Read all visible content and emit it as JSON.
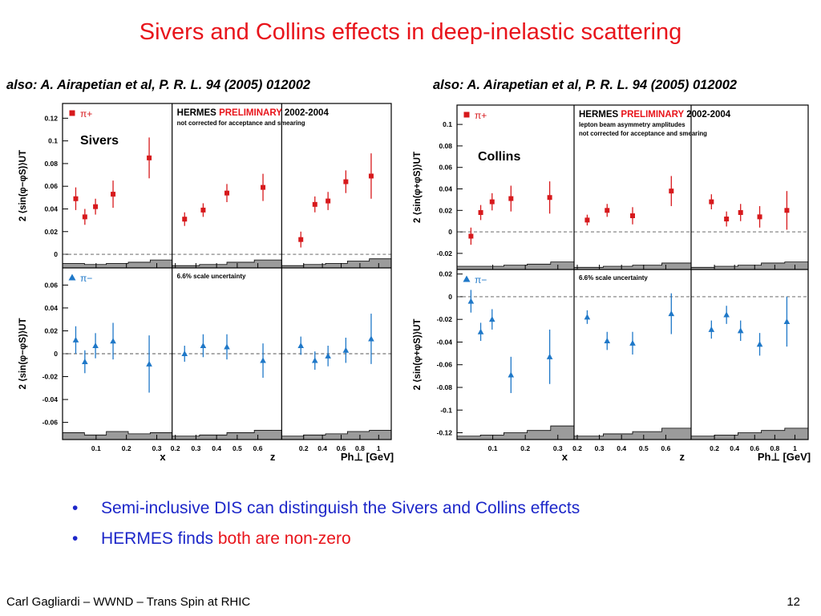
{
  "slide": {
    "title": "Sivers and Collins effects in deep-inelastic scattering",
    "bullets": [
      {
        "symbol": "•",
        "parts": [
          {
            "text": "Semi-inclusive DIS can distinguish the Sivers and Collins effects",
            "color": "#1d27c9"
          }
        ]
      },
      {
        "symbol": "•",
        "parts": [
          {
            "text": "HERMES finds ",
            "color": "#1d27c9"
          },
          {
            "text": "both are non-zero",
            "color": "#e8141b"
          }
        ]
      }
    ],
    "footer_left": "Carl Gagliardi – WWND – Trans Spin at RHIC",
    "page_number": "12"
  },
  "chart_data": [
    {
      "type": "scatter",
      "name": "sivers",
      "reference": "also: A. Airapetian et al, P. R. L. 94 (2005) 012002",
      "experiment": "HERMES",
      "preliminary_label": "PRELIMINARY",
      "years": "2002-2004",
      "note_lines": [
        "not corrected for acceptance and smearing"
      ],
      "overlay_label": "Sivers",
      "scale_uncertainty": "6.6% scale uncertainty",
      "ylabel": "2 ⟨sin(φ−φS)⟩UT",
      "xlabels": [
        "x",
        "z",
        "Ph⊥ [GeV]"
      ],
      "xlims": [
        [
          0.0,
          0.34
        ],
        [
          0.2,
          0.7
        ],
        [
          0.0,
          1.1
        ]
      ],
      "xticks": [
        [
          0.1,
          0.2,
          0.3
        ],
        [
          0.2,
          0.3,
          0.4,
          0.5,
          0.6
        ],
        [
          0.2,
          0.4,
          0.6,
          0.8,
          1
        ]
      ],
      "rows": [
        {
          "series": "π+",
          "marker": "square",
          "color": "#d7191c",
          "ylim": [
            -0.012,
            0.133
          ],
          "yticks": [
            0,
            0.02,
            0.04,
            0.06,
            0.08,
            0.1,
            0.12
          ],
          "ytick_labels": [
            "0",
            "0.02",
            "0.04",
            "0.06",
            "0.08",
            "0.1",
            "0.12"
          ],
          "panels": [
            {
              "x": [
                0.033,
                0.063,
                0.098,
                0.156,
                0.275
              ],
              "y": [
                0.049,
                0.033,
                0.042,
                0.053,
                0.085
              ],
              "err": [
                0.01,
                0.007,
                0.007,
                0.012,
                0.018
              ]
            },
            {
              "x": [
                0.245,
                0.335,
                0.45,
                0.625
              ],
              "y": [
                0.031,
                0.039,
                0.054,
                0.059
              ],
              "err": [
                0.006,
                0.006,
                0.008,
                0.012
              ]
            },
            {
              "x": [
                0.17,
                0.32,
                0.46,
                0.65,
                0.92
              ],
              "y": [
                0.013,
                0.044,
                0.047,
                0.064,
                0.069
              ],
              "err": [
                0.007,
                0.007,
                0.008,
                0.01,
                0.02
              ]
            }
          ],
          "syst_bands": [
            [
              0.004,
              0.003,
              0.004,
              0.005,
              0.007
            ],
            [
              0.002,
              0.003,
              0.005,
              0.007
            ],
            [
              0.002,
              0.003,
              0.004,
              0.006,
              0.008
            ]
          ]
        },
        {
          "series": "π−",
          "marker": "triangle",
          "color": "#1f78c8",
          "ylim": [
            -0.075,
            0.075
          ],
          "yticks": [
            -0.06,
            -0.04,
            -0.02,
            0,
            0.02,
            0.04,
            0.06
          ],
          "ytick_labels": [
            "-0.06",
            "-0.04",
            "-0.02",
            "0",
            "0.02",
            "0.04",
            "0.06"
          ],
          "panels": [
            {
              "x": [
                0.033,
                0.063,
                0.098,
                0.156,
                0.275
              ],
              "y": [
                0.012,
                -0.007,
                0.007,
                0.011,
                -0.009
              ],
              "err": [
                0.012,
                0.01,
                0.011,
                0.016,
                0.025
              ]
            },
            {
              "x": [
                0.245,
                0.335,
                0.45,
                0.625
              ],
              "y": [
                0.0,
                0.007,
                0.006,
                -0.006
              ],
              "err": [
                0.007,
                0.01,
                0.011,
                0.015
              ]
            },
            {
              "x": [
                0.17,
                0.32,
                0.46,
                0.65,
                0.92
              ],
              "y": [
                0.007,
                -0.006,
                -0.002,
                0.003,
                0.013
              ],
              "err": [
                0.008,
                0.008,
                0.009,
                0.011,
                0.022
              ]
            }
          ],
          "syst_bands": [
            [
              0.006,
              0.004,
              0.007,
              0.005,
              0.006
            ],
            [
              0.003,
              0.004,
              0.006,
              0.008
            ],
            [
              0.003,
              0.004,
              0.005,
              0.007,
              0.008
            ]
          ]
        }
      ]
    },
    {
      "type": "scatter",
      "name": "collins",
      "reference": "also: A. Airapetian et al, P. R. L. 94 (2005) 012002",
      "experiment": "HERMES",
      "preliminary_label": "PRELIMINARY",
      "years": "2002-2004",
      "note_lines": [
        "lepton beam asymmetry amplitudes",
        "not corrected for acceptance and smearing"
      ],
      "overlay_label": "Collins",
      "scale_uncertainty": "6.6% scale uncertainty",
      "ylabel": "2 ⟨sin(φ+φS)⟩UT",
      "xlabels": [
        "x",
        "z",
        "Ph⊥ [GeV]"
      ],
      "xlims": [
        [
          0.0,
          0.34
        ],
        [
          0.2,
          0.7
        ],
        [
          0.0,
          1.1
        ]
      ],
      "xticks": [
        [
          0.1,
          0.2,
          0.3
        ],
        [
          0.2,
          0.3,
          0.4,
          0.5,
          0.6
        ],
        [
          0.2,
          0.4,
          0.6,
          0.8,
          1
        ]
      ],
      "rows": [
        {
          "series": "π+",
          "marker": "square",
          "color": "#d7191c",
          "ylim": [
            -0.035,
            0.118
          ],
          "yticks": [
            -0.02,
            0,
            0.02,
            0.04,
            0.06,
            0.08,
            0.1
          ],
          "ytick_labels": [
            "-0.02",
            "0",
            "0.02",
            "0.04",
            "0.06",
            "0.08",
            "0.1"
          ],
          "panels": [
            {
              "x": [
                0.033,
                0.063,
                0.098,
                0.156,
                0.275
              ],
              "y": [
                -0.004,
                0.018,
                0.028,
                0.031,
                0.032
              ],
              "err": [
                0.008,
                0.007,
                0.008,
                0.012,
                0.015
              ]
            },
            {
              "x": [
                0.245,
                0.335,
                0.45,
                0.625
              ],
              "y": [
                0.011,
                0.02,
                0.015,
                0.038
              ],
              "err": [
                0.005,
                0.006,
                0.008,
                0.014
              ]
            },
            {
              "x": [
                0.17,
                0.32,
                0.46,
                0.65,
                0.92
              ],
              "y": [
                0.028,
                0.012,
                0.018,
                0.014,
                0.02
              ],
              "err": [
                0.007,
                0.007,
                0.008,
                0.01,
                0.018
              ]
            }
          ],
          "syst_bands": [
            [
              0.003,
              0.003,
              0.004,
              0.005,
              0.007
            ],
            [
              0.002,
              0.003,
              0.004,
              0.006
            ],
            [
              0.002,
              0.003,
              0.004,
              0.006,
              0.007
            ]
          ]
        },
        {
          "series": "π−",
          "marker": "triangle",
          "color": "#1f78c8",
          "ylim": [
            -0.126,
            0.024
          ],
          "yticks": [
            -0.12,
            -0.1,
            -0.08,
            -0.06,
            -0.04,
            -0.02,
            0,
            0.02
          ],
          "ytick_labels": [
            "-0.12",
            "-0.1",
            "-0.08",
            "-0.06",
            "-0.04",
            "-0.02",
            "0",
            "0.02"
          ],
          "panels": [
            {
              "x": [
                0.033,
                0.063,
                0.098,
                0.156,
                0.275
              ],
              "y": [
                -0.004,
                -0.031,
                -0.02,
                -0.069,
                -0.053
              ],
              "err": [
                0.01,
                0.008,
                0.009,
                0.016,
                0.024
              ]
            },
            {
              "x": [
                0.245,
                0.335,
                0.45,
                0.625
              ],
              "y": [
                -0.018,
                -0.039,
                -0.041,
                -0.015
              ],
              "err": [
                0.006,
                0.008,
                0.01,
                0.018
              ]
            },
            {
              "x": [
                0.17,
                0.32,
                0.46,
                0.65,
                0.92
              ],
              "y": [
                -0.029,
                -0.016,
                -0.03,
                -0.042,
                -0.022
              ],
              "err": [
                0.008,
                0.008,
                0.009,
                0.01,
                0.022
              ]
            }
          ],
          "syst_bands": [
            [
              0.003,
              0.004,
              0.006,
              0.008,
              0.012
            ],
            [
              0.003,
              0.005,
              0.007,
              0.01
            ],
            [
              0.003,
              0.004,
              0.006,
              0.008,
              0.01
            ]
          ]
        }
      ]
    }
  ]
}
